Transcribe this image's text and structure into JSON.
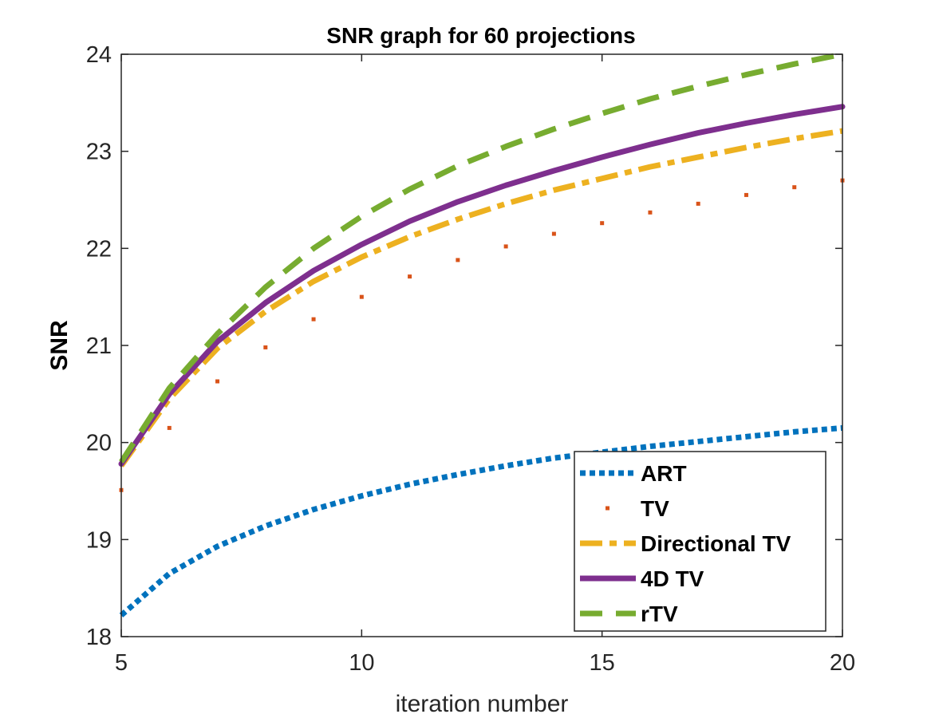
{
  "chart_data": {
    "type": "line",
    "title": "SNR graph for 60 projections",
    "xlabel": "iteration number",
    "ylabel": "SNR",
    "xlim": [
      5,
      20
    ],
    "ylim": [
      18,
      24
    ],
    "xticks": [
      5,
      10,
      15,
      20
    ],
    "yticks": [
      18,
      19,
      20,
      21,
      22,
      23,
      24
    ],
    "grid": false,
    "legend_position": "bottom-right",
    "x": [
      5,
      6,
      7,
      8,
      9,
      10,
      11,
      12,
      13,
      14,
      15,
      16,
      17,
      18,
      19,
      20
    ],
    "series": [
      {
        "name": "ART",
        "color": "#0072BD",
        "style": "dotted",
        "values": [
          18.22,
          18.65,
          18.93,
          19.14,
          19.31,
          19.45,
          19.57,
          19.67,
          19.76,
          19.84,
          19.9,
          19.96,
          20.01,
          20.06,
          20.11,
          20.15
        ]
      },
      {
        "name": "TV",
        "color": "#D95319",
        "style": "points",
        "values": [
          19.51,
          20.15,
          20.63,
          20.98,
          21.27,
          21.5,
          21.71,
          21.88,
          22.02,
          22.15,
          22.26,
          22.37,
          22.46,
          22.55,
          22.63,
          22.7
        ]
      },
      {
        "name": "Directional TV",
        "color": "#EDB120",
        "style": "dashdot",
        "values": [
          19.76,
          20.45,
          20.97,
          21.35,
          21.66,
          21.91,
          22.12,
          22.3,
          22.46,
          22.6,
          22.72,
          22.84,
          22.94,
          23.04,
          23.13,
          23.21
        ]
      },
      {
        "name": "4D TV",
        "color": "#7E2F8E",
        "style": "solid",
        "values": [
          19.78,
          20.5,
          21.04,
          21.44,
          21.77,
          22.04,
          22.28,
          22.48,
          22.65,
          22.8,
          22.94,
          23.07,
          23.19,
          23.29,
          23.38,
          23.46
        ]
      },
      {
        "name": "rTV",
        "color": "#77AC30",
        "style": "dashed",
        "values": [
          19.8,
          20.56,
          21.12,
          21.6,
          22.0,
          22.33,
          22.61,
          22.85,
          23.05,
          23.23,
          23.39,
          23.54,
          23.67,
          23.79,
          23.9,
          24.0
        ]
      }
    ]
  }
}
